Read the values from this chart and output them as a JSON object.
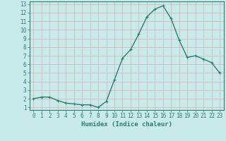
{
  "xlabel": "Humidex (Indice chaleur)",
  "x": [
    0,
    1,
    2,
    3,
    4,
    5,
    6,
    7,
    8,
    9,
    10,
    11,
    12,
    13,
    14,
    15,
    16,
    17,
    18,
    19,
    20,
    21,
    22,
    23
  ],
  "y": [
    2.0,
    2.2,
    2.2,
    1.8,
    1.5,
    1.4,
    1.3,
    1.3,
    1.0,
    1.7,
    4.2,
    6.7,
    7.7,
    9.5,
    11.5,
    12.4,
    12.8,
    11.3,
    8.8,
    6.8,
    7.0,
    6.6,
    6.2,
    5.0
  ],
  "line_color": "#2e7d6e",
  "marker": "+",
  "marker_size": 3,
  "bg_color": "#c8eaea",
  "grid_color": "#d9b0b0",
  "tick_color": "#2e7d6e",
  "label_color": "#2e7d6e",
  "ylim_min": 1,
  "ylim_max": 13,
  "xlim_min": 0,
  "xlim_max": 23,
  "yticks": [
    1,
    2,
    3,
    4,
    5,
    6,
    7,
    8,
    9,
    10,
    11,
    12,
    13
  ],
  "xticks": [
    0,
    1,
    2,
    3,
    4,
    5,
    6,
    7,
    8,
    9,
    10,
    11,
    12,
    13,
    14,
    15,
    16,
    17,
    18,
    19,
    20,
    21,
    22,
    23
  ],
  "xlabel_fontsize": 6.5,
  "tick_fontsize": 5.5,
  "line_width": 1.0
}
